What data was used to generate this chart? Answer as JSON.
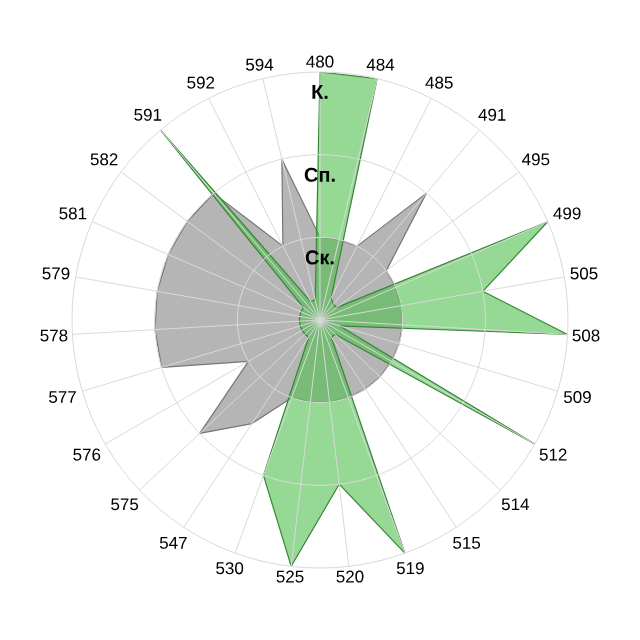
{
  "chart_data": {
    "type": "radar",
    "categories": [
      "480",
      "484",
      "485",
      "491",
      "495",
      "499",
      "505",
      "508",
      "509",
      "512",
      "514",
      "515",
      "519",
      "520",
      "525",
      "530",
      "547",
      "575",
      "576",
      "577",
      "578",
      "579",
      "581",
      "582",
      "591",
      "592",
      "594"
    ],
    "ylim": [
      0,
      3
    ],
    "yticks": [
      {
        "value": 1,
        "label": "Ск."
      },
      {
        "value": 2,
        "label": "Сп."
      },
      {
        "value": 3,
        "label": "К."
      }
    ],
    "grid": true,
    "series": [
      {
        "color": "#a8a8a8",
        "values": [
          1,
          1,
          1,
          2,
          1,
          1,
          1,
          1,
          1,
          1,
          1,
          1,
          1,
          1,
          1,
          1,
          1.5,
          2,
          1,
          2,
          2,
          2,
          2,
          2,
          2,
          1,
          2
        ]
      },
      {
        "color": "#4fbf4f",
        "values": [
          3,
          3,
          0.3,
          0.25,
          0.25,
          3,
          2,
          3,
          0.25,
          3,
          0.25,
          0.25,
          3,
          2,
          3,
          2,
          0.25,
          0.25,
          0.25,
          0.25,
          0.25,
          0.25,
          0.25,
          0.25,
          3,
          0.25,
          0.25
        ]
      }
    ]
  }
}
